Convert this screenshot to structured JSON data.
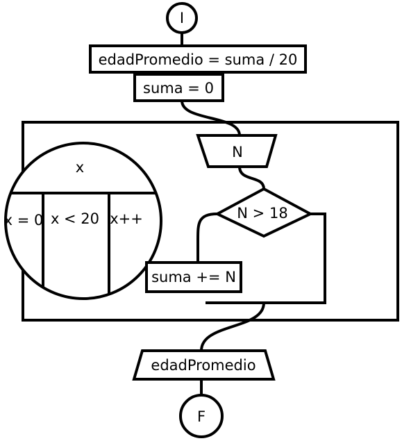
{
  "flowchart": {
    "start": "I",
    "assign_avg": "edadPromedio = suma / 20",
    "init_sum": "suma = 0",
    "loop": {
      "variable": "x",
      "init": "x = 0",
      "condition": "x < 20",
      "increment": "x++"
    },
    "input": "N",
    "decision": "N > 18",
    "accumulate": "suma += N",
    "output": "edadPromedio",
    "end": "F"
  },
  "colors": {
    "stroke": "#000000",
    "background": "#ffffff"
  }
}
